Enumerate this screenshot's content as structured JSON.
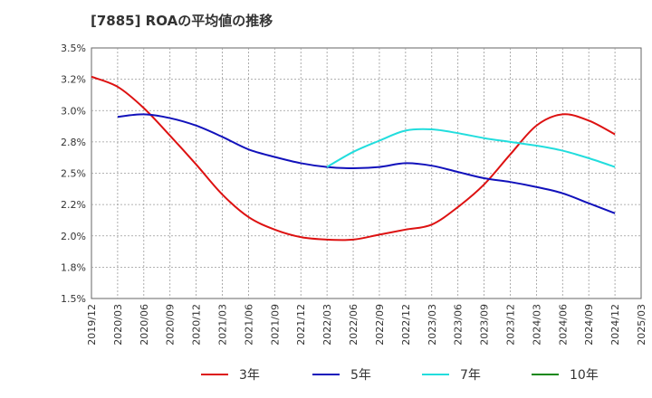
{
  "chart_data": {
    "type": "line",
    "title": "[7885]  ROAの平均値の推移",
    "xlabel": "",
    "ylabel": "",
    "ylim": [
      1.5,
      3.5
    ],
    "yticks": [
      "3.5%",
      "3.2%",
      "3.0%",
      "2.8%",
      "2.5%",
      "2.2%",
      "2.0%",
      "1.8%",
      "1.5%"
    ],
    "y_tick_values": [
      3.5,
      3.25,
      3.0,
      2.75,
      2.5,
      2.25,
      2.0,
      1.75,
      1.5
    ],
    "x": [
      "2019/12",
      "2020/03",
      "2020/06",
      "2020/09",
      "2020/12",
      "2021/03",
      "2021/06",
      "2021/09",
      "2021/12",
      "2022/03",
      "2022/06",
      "2022/09",
      "2022/12",
      "2023/03",
      "2023/06",
      "2023/09",
      "2023/12",
      "2024/03",
      "2024/06",
      "2024/09",
      "2024/12",
      "2025/03"
    ],
    "grid": true,
    "legend_position": "bottom",
    "series": [
      {
        "name": "3年",
        "color": "#dd1111",
        "values": [
          3.27,
          3.19,
          3.02,
          2.8,
          2.57,
          2.33,
          2.15,
          2.05,
          1.99,
          1.97,
          1.97,
          2.01,
          2.05,
          2.09,
          2.23,
          2.41,
          2.65,
          2.88,
          2.97,
          2.92,
          2.81,
          null
        ]
      },
      {
        "name": "5年",
        "color": "#1111bb",
        "values": [
          null,
          2.95,
          2.97,
          2.94,
          2.88,
          2.79,
          2.69,
          2.63,
          2.58,
          2.55,
          2.54,
          2.55,
          2.58,
          2.56,
          2.51,
          2.46,
          2.43,
          2.39,
          2.34,
          2.26,
          2.18,
          null
        ]
      },
      {
        "name": "7年",
        "color": "#22dddd",
        "values": [
          null,
          null,
          null,
          null,
          null,
          null,
          null,
          null,
          null,
          2.55,
          2.67,
          2.76,
          2.84,
          2.85,
          2.82,
          2.78,
          2.75,
          2.72,
          2.68,
          2.62,
          2.55,
          null
        ]
      },
      {
        "name": "10年",
        "color": "#118811",
        "values": [
          null,
          null,
          null,
          null,
          null,
          null,
          null,
          null,
          null,
          null,
          null,
          null,
          null,
          null,
          null,
          null,
          null,
          null,
          null,
          null,
          null,
          null
        ]
      }
    ]
  }
}
